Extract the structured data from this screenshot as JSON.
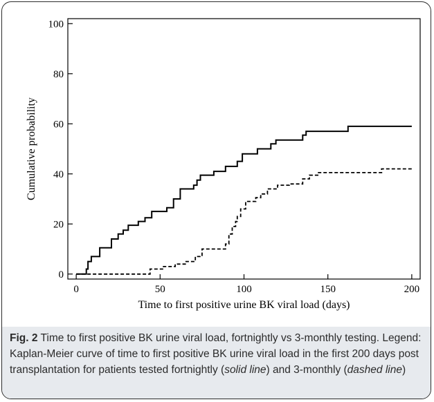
{
  "chart_data": {
    "type": "line",
    "xlabel": "Time to first positive urine BK viral load (days)",
    "ylabel": "Cumulative probability",
    "xlim": [
      -5,
      205
    ],
    "ylim": [
      -2,
      102
    ],
    "xticks": [
      0,
      50,
      100,
      150,
      200
    ],
    "yticks": [
      0,
      20,
      40,
      60,
      80,
      100
    ],
    "grid": false,
    "series": [
      {
        "style": "solid",
        "points": [
          [
            0,
            0
          ],
          [
            6,
            0
          ],
          [
            6,
            2
          ],
          [
            7,
            2
          ],
          [
            7,
            5
          ],
          [
            9,
            5
          ],
          [
            9,
            7
          ],
          [
            14,
            7
          ],
          [
            14,
            10.5
          ],
          [
            21,
            10.5
          ],
          [
            21,
            14
          ],
          [
            25,
            14
          ],
          [
            25,
            16
          ],
          [
            28,
            16
          ],
          [
            28,
            17.5
          ],
          [
            31,
            17.5
          ],
          [
            31,
            19.5
          ],
          [
            37,
            19.5
          ],
          [
            37,
            21
          ],
          [
            41,
            21
          ],
          [
            41,
            22.5
          ],
          [
            45,
            22.5
          ],
          [
            45,
            25
          ],
          [
            54,
            25
          ],
          [
            54,
            26.5
          ],
          [
            58,
            26.5
          ],
          [
            58,
            30
          ],
          [
            62,
            30
          ],
          [
            62,
            34
          ],
          [
            70,
            34
          ],
          [
            70,
            35.5
          ],
          [
            72,
            35.5
          ],
          [
            72,
            37.5
          ],
          [
            74,
            37.5
          ],
          [
            74,
            39.5
          ],
          [
            82,
            39.5
          ],
          [
            82,
            41
          ],
          [
            89,
            41
          ],
          [
            89,
            43
          ],
          [
            96,
            43
          ],
          [
            96,
            45
          ],
          [
            99,
            45
          ],
          [
            99,
            48
          ],
          [
            108,
            48
          ],
          [
            108,
            50
          ],
          [
            116,
            50
          ],
          [
            116,
            52
          ],
          [
            119,
            52
          ],
          [
            119,
            53.5
          ],
          [
            135,
            53.5
          ],
          [
            135,
            55.5
          ],
          [
            137,
            55.5
          ],
          [
            137,
            57
          ],
          [
            162,
            57
          ],
          [
            162,
            59
          ],
          [
            200,
            59
          ]
        ]
      },
      {
        "style": "dashed",
        "points": [
          [
            0,
            0
          ],
          [
            44,
            0
          ],
          [
            44,
            2
          ],
          [
            52,
            2
          ],
          [
            52,
            3
          ],
          [
            59,
            3
          ],
          [
            59,
            4
          ],
          [
            65,
            4
          ],
          [
            65,
            5
          ],
          [
            71,
            5
          ],
          [
            71,
            7
          ],
          [
            75,
            7
          ],
          [
            75,
            10
          ],
          [
            89,
            10
          ],
          [
            89,
            12
          ],
          [
            91,
            12
          ],
          [
            91,
            16
          ],
          [
            93,
            16
          ],
          [
            93,
            19
          ],
          [
            95,
            19
          ],
          [
            95,
            21
          ],
          [
            96,
            21
          ],
          [
            96,
            23
          ],
          [
            98,
            23
          ],
          [
            98,
            26
          ],
          [
            101,
            26
          ],
          [
            101,
            29
          ],
          [
            107,
            29
          ],
          [
            107,
            30.5
          ],
          [
            110,
            30.5
          ],
          [
            110,
            32
          ],
          [
            114,
            32
          ],
          [
            114,
            34
          ],
          [
            120,
            34
          ],
          [
            120,
            35.5
          ],
          [
            127,
            35.5
          ],
          [
            127,
            36
          ],
          [
            135,
            36
          ],
          [
            135,
            38
          ],
          [
            139,
            38
          ],
          [
            139,
            39.5
          ],
          [
            144,
            39.5
          ],
          [
            144,
            40.5
          ],
          [
            182,
            40.5
          ],
          [
            182,
            42
          ],
          [
            200,
            42
          ]
        ]
      }
    ]
  },
  "caption": {
    "fig_label": "Fig. 2",
    "title_text": " Time to first positive BK urine viral load, fortnightly vs 3-monthly testing. Legend: Kaplan-Meier curve of time to first positive BK urine viral load in the first 200 days post transplantation for patients tested fortnightly (",
    "solid_label": "solid line",
    "middle_text": ") and 3-monthly (",
    "dashed_label": "dashed line",
    "end_text": ")"
  }
}
